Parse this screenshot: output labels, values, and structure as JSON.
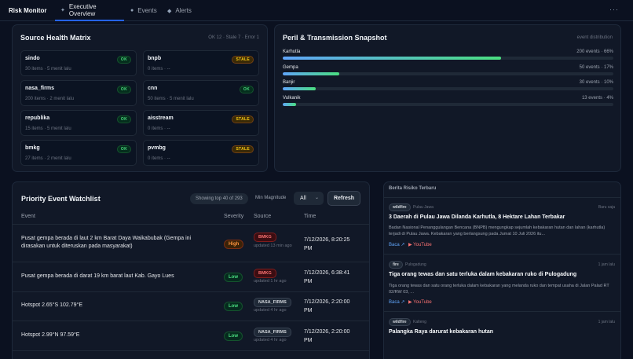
{
  "nav": {
    "brand": "Risk Monitor",
    "tabs": [
      {
        "label": "Executive Overview",
        "icon": "sparkle-icon"
      },
      {
        "label": "Events",
        "icon": "dot-icon"
      },
      {
        "label": "Alerts",
        "icon": "diamond-icon"
      }
    ],
    "menu": "···"
  },
  "source_health": {
    "title": "Source Health Matrix",
    "summary": "OK 12 · Stale 7 · Error 1",
    "sources": [
      {
        "name": "sindo",
        "meta": "30 items · 5 menit lalu",
        "status": "OK"
      },
      {
        "name": "bnpb",
        "meta": "0 items · --",
        "status": "STALE"
      },
      {
        "name": "nasa_firms",
        "meta": "200 items · 2 menit lalu",
        "status": "OK"
      },
      {
        "name": "cnn",
        "meta": "50 items · 5 menit lalu",
        "status": "OK"
      },
      {
        "name": "republika",
        "meta": "15 items · 5 menit lalu",
        "status": "OK"
      },
      {
        "name": "aisstream",
        "meta": "0 items · --",
        "status": "STALE"
      },
      {
        "name": "bmkg",
        "meta": "27 items · 2 menit lalu",
        "status": "OK"
      },
      {
        "name": "pvmbg",
        "meta": "0 items · --",
        "status": "STALE"
      }
    ]
  },
  "peril": {
    "title": "Peril & Transmission Snapshot",
    "subtitle": "event distribution",
    "items": [
      {
        "name": "Karhutla",
        "value": "200 events · 66%",
        "share": 0.66
      },
      {
        "name": "Gempa",
        "value": "50 events · 17%",
        "share": 0.17
      },
      {
        "name": "Banjir",
        "value": "30 events · 10%",
        "share": 0.1
      },
      {
        "name": "Vulkanik",
        "value": "13 events · 4%",
        "share": 0.04
      }
    ]
  },
  "watchlist": {
    "title": "Priority Event Watchlist",
    "showing": "Showing top 40 of 293",
    "magnitude_label": "Min Magnitude",
    "magnitude_value": "All",
    "refresh_label": "Refresh",
    "columns": [
      "Event",
      "Severity",
      "Source",
      "Time"
    ],
    "rows": [
      {
        "event": "Pusat gempa berada di laut 2 km Barat Daya Waikabubak (Gempa ini dirasakan untuk diteruskan pada masyarakat)",
        "severity": "High",
        "source": "BMKG",
        "updated": "updated 13 min ago",
        "time": "7/12/2026, 8:20:25 PM"
      },
      {
        "event": "Pusat gempa berada di darat 19 km barat laut Kab. Gayo Lues",
        "severity": "Low",
        "source": "BMKG",
        "updated": "updated 1 hr ago",
        "time": "7/12/2026, 6:38:41 PM"
      },
      {
        "event": "Hotspot 2.65°S 102.79°E",
        "severity": "Low",
        "source": "NASA_FIRMS",
        "updated": "updated 4 hr ago",
        "time": "7/12/2026, 2:20:00 PM"
      },
      {
        "event": "Hotspot 2.99°N 97.59°E",
        "severity": "Low",
        "source": "NASA_FIRMS",
        "updated": "updated 4 hr ago",
        "time": "7/12/2026, 2:20:00 PM"
      }
    ]
  },
  "news": {
    "title": "Berita Risiko Terbaru",
    "items": [
      {
        "tag": "wildfire",
        "location": "Pulau Jawa",
        "ago": "Baru saja",
        "title": "3 Daerah di Pulau Jawa Dilanda Karhutla, 8 Hektare Lahan Terbakar",
        "summary": "Badan Nasional Penanggulangan Bencana (BNPB) mengungkap sejumlah kebakaran hutan dan lahan (karhutla) terjadi di Pulau Jawa. Kebakaran yang berlangsung pada Jumat 10 Juli 2026 itu...",
        "read": "Baca ↗",
        "youtube": "▶ YouTube"
      },
      {
        "tag": "fire",
        "location": "Pulogadung",
        "ago": "1 jam lalu",
        "title": "Tiga orang tewas dan satu terluka dalam kebakaran ruko di Pulogadung",
        "summary": "Tiga orang tewas dan satu orang terluka dalam kebakaran yang melanda ruko dan tempat usaha di Jalan Palad RT 02/RW 03, ...",
        "read": "Baca ↗",
        "youtube": "▶ YouTube"
      },
      {
        "tag": "wildfire",
        "location": "Kalteng",
        "ago": "1 jam lalu",
        "title": "Palangka Raya darurat kebakaran hutan"
      }
    ]
  },
  "colors": {
    "background": "#0b1120",
    "panel": "#111827",
    "accent": "#2563eb",
    "ok": "#4ade80",
    "stale": "#facc15",
    "high": "#fb923c"
  }
}
